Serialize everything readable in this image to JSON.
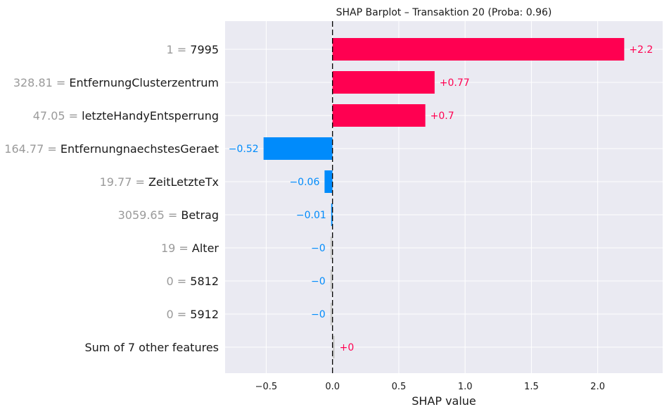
{
  "chart_data": {
    "type": "bar",
    "orientation": "horizontal",
    "title": "SHAP Barplot – Transaktion 20 (Proba: 0.96)",
    "xlabel": "SHAP value",
    "ylabel": "",
    "xlim": [
      -0.81,
      2.49
    ],
    "xticks": [
      -0.5,
      0.0,
      0.5,
      1.0,
      1.5,
      2.0
    ],
    "xtick_labels": [
      "−0.5",
      "0.0",
      "0.5",
      "1.0",
      "1.5",
      "2.0"
    ],
    "grid": true,
    "zero_line": "dashed",
    "bars": [
      {
        "value_prefix": "1 = ",
        "feature": "7995",
        "shap": 2.2,
        "label": "+2.2"
      },
      {
        "value_prefix": "328.81 = ",
        "feature": "EntfernungClusterzentrum",
        "shap": 0.77,
        "label": "+0.77"
      },
      {
        "value_prefix": "47.05 = ",
        "feature": "letzteHandyEntsperrung",
        "shap": 0.7,
        "label": "+0.7"
      },
      {
        "value_prefix": "164.77 = ",
        "feature": "EntfernungnaechstesGeraet",
        "shap": -0.52,
        "label": "−0.52"
      },
      {
        "value_prefix": "19.77 = ",
        "feature": "ZeitLetzteTx",
        "shap": -0.06,
        "label": "−0.06"
      },
      {
        "value_prefix": "3059.65 = ",
        "feature": "Betrag",
        "shap": -0.01,
        "label": "−0.01"
      },
      {
        "value_prefix": "19 = ",
        "feature": "Alter",
        "shap": -0.001,
        "label": "−0"
      },
      {
        "value_prefix": "0 = ",
        "feature": "5812",
        "shap": -0.001,
        "label": "−0"
      },
      {
        "value_prefix": "0 = ",
        "feature": "5912",
        "shap": -0.001,
        "label": "−0"
      },
      {
        "value_prefix": "",
        "feature": "Sum of 7 other features",
        "shap": 0.001,
        "label": "+0"
      }
    ]
  },
  "colors": {
    "positive": "#ff0051",
    "negative": "#008bfb",
    "near_zero": "#cccccc",
    "background": "#eaeaf2",
    "grid": "#ffffff"
  }
}
